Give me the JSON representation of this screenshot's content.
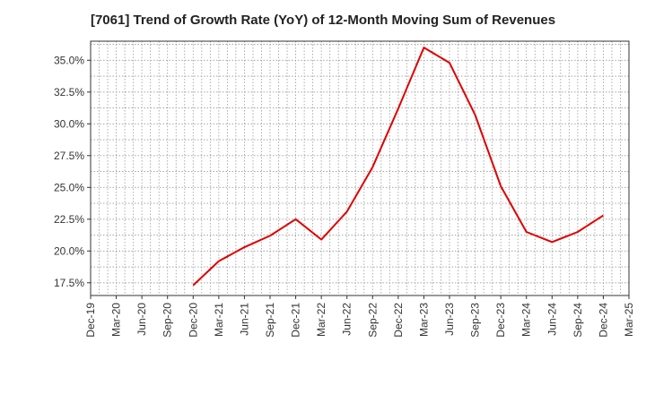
{
  "chart_data": {
    "type": "line",
    "title": "[7061]  Trend of Growth Rate (YoY) of 12-Month Moving Sum of Revenues",
    "xlabel": "",
    "ylabel": "",
    "ylim": [
      16.5,
      36.5
    ],
    "yticks": [
      17.5,
      20.0,
      22.5,
      25.0,
      27.5,
      30.0,
      32.5,
      35.0
    ],
    "ytick_labels": [
      "17.5%",
      "20.0%",
      "22.5%",
      "25.0%",
      "27.5%",
      "30.0%",
      "32.5%",
      "35.0%"
    ],
    "categories": [
      "Dec-19",
      "Mar-20",
      "Jun-20",
      "Sep-20",
      "Dec-20",
      "Mar-21",
      "Jun-21",
      "Sep-21",
      "Dec-21",
      "Mar-22",
      "Jun-22",
      "Sep-22",
      "Dec-22",
      "Mar-23",
      "Jun-23",
      "Sep-23",
      "Dec-23",
      "Mar-24",
      "Jun-24",
      "Sep-24",
      "Dec-24",
      "Mar-25"
    ],
    "grid": true,
    "series": [
      {
        "color": "#e00000",
        "values": [
          null,
          null,
          null,
          null,
          17.3,
          19.2,
          20.3,
          21.2,
          22.5,
          20.9,
          23.1,
          26.6,
          31.2,
          36.0,
          34.8,
          30.7,
          25.1,
          21.5,
          20.7,
          21.5,
          22.8,
          null
        ]
      }
    ]
  }
}
